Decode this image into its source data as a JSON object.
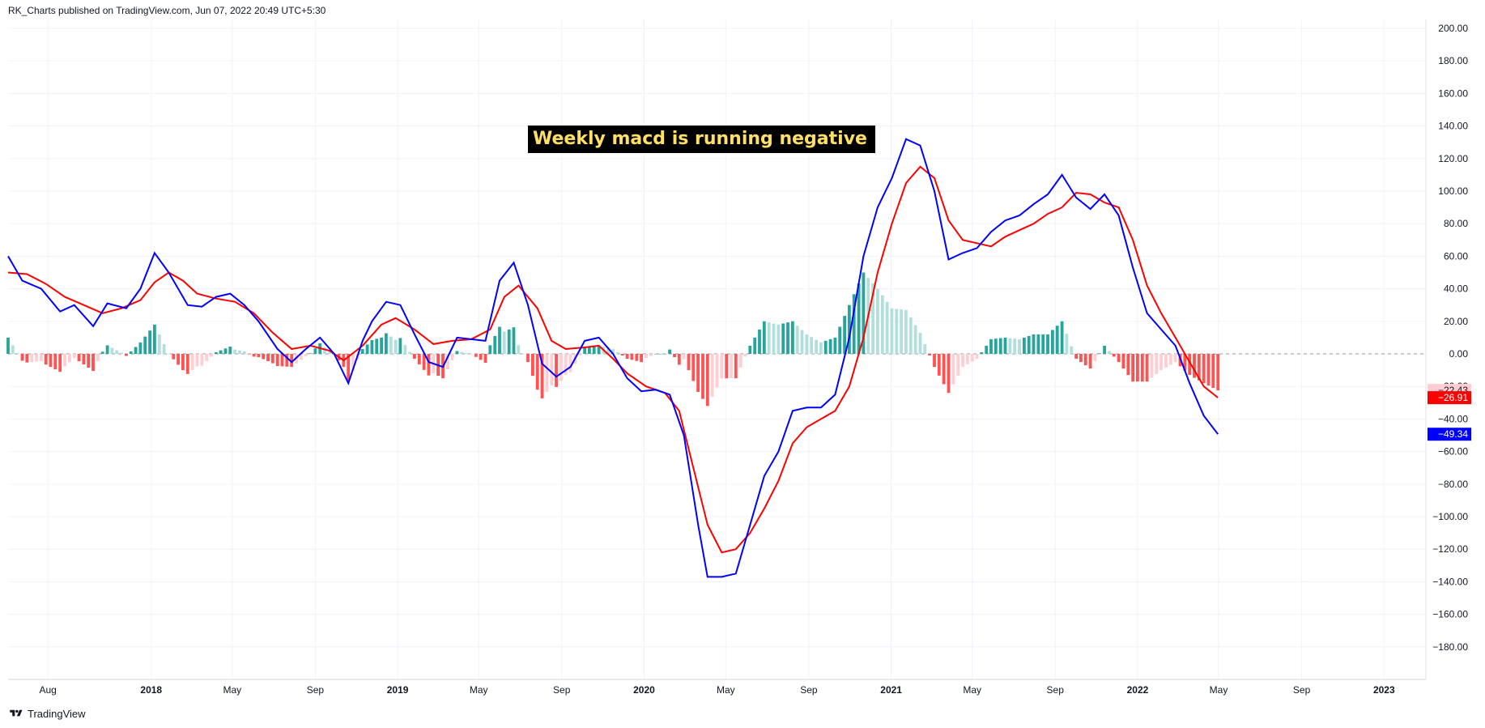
{
  "header": {
    "text": "RK_Charts published on TradingView.com, Jun 07, 2022 20:49 UTC+5:30"
  },
  "footer": {
    "brand": "TradingView",
    "logo_icon": "tradingview-logo-icon"
  },
  "annotation": {
    "text": "Weekly macd is running negative"
  },
  "chart_data": {
    "type": "line",
    "y_ticks": [
      "200.00",
      "180.00",
      "160.00",
      "140.00",
      "120.00",
      "100.00",
      "80.00",
      "60.00",
      "40.00",
      "20.00",
      "0.00",
      "−20.00",
      "−40.00",
      "−60.00",
      "−80.00",
      "−100.00",
      "−120.00",
      "−140.00",
      "−160.00",
      "−180.00"
    ],
    "y_tick_values": [
      200,
      180,
      160,
      140,
      120,
      100,
      80,
      60,
      40,
      20,
      0,
      -20,
      -40,
      -60,
      -80,
      -100,
      -120,
      -140,
      -160,
      -180
    ],
    "ylim": [
      -200,
      210
    ],
    "x_ticks": [
      {
        "label": "Aug",
        "date": "2017-08-01",
        "bold": false
      },
      {
        "label": "2018",
        "date": "2018-01-01",
        "bold": true
      },
      {
        "label": "May",
        "date": "2018-05-01",
        "bold": false
      },
      {
        "label": "Sep",
        "date": "2018-09-01",
        "bold": false
      },
      {
        "label": "2019",
        "date": "2019-01-01",
        "bold": true
      },
      {
        "label": "May",
        "date": "2019-05-01",
        "bold": false
      },
      {
        "label": "Sep",
        "date": "2019-09-01",
        "bold": false
      },
      {
        "label": "2020",
        "date": "2020-01-01",
        "bold": true
      },
      {
        "label": "May",
        "date": "2020-05-01",
        "bold": false
      },
      {
        "label": "Sep",
        "date": "2020-09-01",
        "bold": false
      },
      {
        "label": "2021",
        "date": "2021-01-01",
        "bold": true
      },
      {
        "label": "May",
        "date": "2021-05-01",
        "bold": false
      },
      {
        "label": "Sep",
        "date": "2021-09-01",
        "bold": false
      },
      {
        "label": "2022",
        "date": "2022-01-01",
        "bold": true
      },
      {
        "label": "May",
        "date": "2022-05-01",
        "bold": false
      },
      {
        "label": "Sep",
        "date": "2022-09-01",
        "bold": false
      },
      {
        "label": "2023",
        "date": "2023-01-01",
        "bold": true
      }
    ],
    "xlim": [
      "2017-06-03",
      "2023-03-04"
    ],
    "grid": true,
    "zero_line": "dashed",
    "colors": {
      "macd": "#0000ff",
      "signal": "#ff0000",
      "hist_pos_strong": "#26a69a",
      "hist_pos_weak": "#b2dfdb",
      "hist_neg_strong": "#ff5252",
      "hist_neg_weak": "#ffcdd2",
      "grid": "#f0f3fa",
      "axis_text": "#131722"
    },
    "value_tags": [
      {
        "value": -22.43,
        "label": "−22.43",
        "bg": "#ffcdd2",
        "fg": "#131722"
      },
      {
        "value": -26.91,
        "label": "−26.91",
        "bg": "#ff0000",
        "fg": "#ffffff"
      },
      {
        "value": -49.34,
        "label": "−49.34",
        "bg": "#0000ff",
        "fg": "#ffffff"
      }
    ],
    "series": [
      {
        "key": "macd",
        "points": [
          [
            "2017-06-03",
            60
          ],
          [
            "2017-06-24",
            45
          ],
          [
            "2017-07-22",
            40
          ],
          [
            "2017-08-19",
            26
          ],
          [
            "2017-09-09",
            30
          ],
          [
            "2017-10-07",
            17
          ],
          [
            "2017-10-28",
            31
          ],
          [
            "2017-11-25",
            28
          ],
          [
            "2017-12-16",
            40
          ],
          [
            "2018-01-06",
            62
          ],
          [
            "2018-01-27",
            50
          ],
          [
            "2018-02-24",
            30
          ],
          [
            "2018-03-17",
            29
          ],
          [
            "2018-04-07",
            35
          ],
          [
            "2018-04-28",
            37
          ],
          [
            "2018-05-19",
            30
          ],
          [
            "2018-06-09",
            20
          ],
          [
            "2018-07-07",
            3
          ],
          [
            "2018-07-28",
            -5
          ],
          [
            "2018-08-18",
            3
          ],
          [
            "2018-09-08",
            10
          ],
          [
            "2018-09-29",
            0
          ],
          [
            "2018-10-20",
            -18
          ],
          [
            "2018-11-10",
            8
          ],
          [
            "2018-11-24",
            20
          ],
          [
            "2018-12-15",
            32
          ],
          [
            "2019-01-05",
            30
          ],
          [
            "2019-01-26",
            12
          ],
          [
            "2019-02-16",
            -5
          ],
          [
            "2019-03-09",
            -8
          ],
          [
            "2019-03-30",
            10
          ],
          [
            "2019-04-20",
            9
          ],
          [
            "2019-05-11",
            8
          ],
          [
            "2019-06-01",
            45
          ],
          [
            "2019-06-22",
            56
          ],
          [
            "2019-07-13",
            30
          ],
          [
            "2019-08-03",
            -6
          ],
          [
            "2019-08-24",
            -14
          ],
          [
            "2019-09-14",
            -8
          ],
          [
            "2019-10-05",
            8
          ],
          [
            "2019-10-26",
            10
          ],
          [
            "2019-11-16",
            0
          ],
          [
            "2019-12-07",
            -15
          ],
          [
            "2019-12-28",
            -23
          ],
          [
            "2020-01-18",
            -22
          ],
          [
            "2020-02-08",
            -25
          ],
          [
            "2020-02-29",
            -50
          ],
          [
            "2020-03-21",
            -105
          ],
          [
            "2020-04-04",
            -137
          ],
          [
            "2020-04-25",
            -137
          ],
          [
            "2020-05-16",
            -135
          ],
          [
            "2020-06-06",
            -105
          ],
          [
            "2020-06-27",
            -75
          ],
          [
            "2020-07-18",
            -60
          ],
          [
            "2020-08-08",
            -35
          ],
          [
            "2020-08-29",
            -33
          ],
          [
            "2020-09-19",
            -33
          ],
          [
            "2020-10-10",
            -25
          ],
          [
            "2020-10-31",
            10
          ],
          [
            "2020-11-21",
            60
          ],
          [
            "2020-12-12",
            90
          ],
          [
            "2021-01-02",
            108
          ],
          [
            "2021-01-23",
            132
          ],
          [
            "2021-02-13",
            128
          ],
          [
            "2021-03-06",
            100
          ],
          [
            "2021-03-27",
            58
          ],
          [
            "2021-04-17",
            62
          ],
          [
            "2021-05-08",
            65
          ],
          [
            "2021-05-29",
            75
          ],
          [
            "2021-06-19",
            82
          ],
          [
            "2021-07-10",
            85
          ],
          [
            "2021-07-31",
            92
          ],
          [
            "2021-08-21",
            98
          ],
          [
            "2021-09-11",
            110
          ],
          [
            "2021-10-02",
            96
          ],
          [
            "2021-10-23",
            89
          ],
          [
            "2021-11-13",
            98
          ],
          [
            "2021-12-04",
            85
          ],
          [
            "2021-12-25",
            53
          ],
          [
            "2022-01-15",
            25
          ],
          [
            "2022-02-05",
            15
          ],
          [
            "2022-02-26",
            5
          ],
          [
            "2022-03-19",
            -18
          ],
          [
            "2022-04-09",
            -38
          ],
          [
            "2022-04-30",
            -49.34
          ]
        ]
      },
      {
        "key": "signal",
        "points": [
          [
            "2017-06-03",
            50
          ],
          [
            "2017-07-01",
            49
          ],
          [
            "2017-07-29",
            43
          ],
          [
            "2017-08-26",
            35
          ],
          [
            "2017-09-23",
            30
          ],
          [
            "2017-10-21",
            25
          ],
          [
            "2017-11-18",
            28
          ],
          [
            "2017-12-16",
            33
          ],
          [
            "2018-01-06",
            44
          ],
          [
            "2018-01-27",
            50
          ],
          [
            "2018-02-17",
            45
          ],
          [
            "2018-03-10",
            37
          ],
          [
            "2018-04-07",
            34
          ],
          [
            "2018-05-05",
            32
          ],
          [
            "2018-06-02",
            25
          ],
          [
            "2018-06-30",
            13
          ],
          [
            "2018-07-28",
            3
          ],
          [
            "2018-08-25",
            5
          ],
          [
            "2018-09-22",
            2
          ],
          [
            "2018-10-13",
            -4
          ],
          [
            "2018-11-10",
            5
          ],
          [
            "2018-12-08",
            18
          ],
          [
            "2018-12-29",
            22
          ],
          [
            "2019-01-26",
            15
          ],
          [
            "2019-02-23",
            6
          ],
          [
            "2019-03-23",
            8
          ],
          [
            "2019-04-20",
            9
          ],
          [
            "2019-05-18",
            15
          ],
          [
            "2019-06-08",
            35
          ],
          [
            "2019-06-29",
            42
          ],
          [
            "2019-07-27",
            28
          ],
          [
            "2019-08-17",
            8
          ],
          [
            "2019-09-07",
            3
          ],
          [
            "2019-10-05",
            4
          ],
          [
            "2019-10-26",
            5
          ],
          [
            "2019-11-16",
            -3
          ],
          [
            "2019-12-07",
            -12
          ],
          [
            "2020-01-04",
            -20
          ],
          [
            "2020-02-01",
            -24
          ],
          [
            "2020-02-22",
            -35
          ],
          [
            "2020-03-14",
            -70
          ],
          [
            "2020-04-04",
            -105
          ],
          [
            "2020-04-25",
            -122
          ],
          [
            "2020-05-16",
            -120
          ],
          [
            "2020-06-06",
            -110
          ],
          [
            "2020-06-27",
            -95
          ],
          [
            "2020-07-18",
            -78
          ],
          [
            "2020-08-08",
            -55
          ],
          [
            "2020-08-29",
            -45
          ],
          [
            "2020-09-19",
            -40
          ],
          [
            "2020-10-10",
            -35
          ],
          [
            "2020-10-31",
            -20
          ],
          [
            "2020-11-21",
            10
          ],
          [
            "2020-12-12",
            50
          ],
          [
            "2021-01-02",
            80
          ],
          [
            "2021-01-23",
            105
          ],
          [
            "2021-02-13",
            115
          ],
          [
            "2021-03-06",
            108
          ],
          [
            "2021-03-27",
            82
          ],
          [
            "2021-04-17",
            70
          ],
          [
            "2021-05-08",
            68
          ],
          [
            "2021-05-29",
            66
          ],
          [
            "2021-06-19",
            72
          ],
          [
            "2021-07-10",
            76
          ],
          [
            "2021-07-31",
            80
          ],
          [
            "2021-08-21",
            86
          ],
          [
            "2021-09-11",
            90
          ],
          [
            "2021-10-02",
            99
          ],
          [
            "2021-10-23",
            98
          ],
          [
            "2021-11-13",
            93
          ],
          [
            "2021-12-04",
            90
          ],
          [
            "2021-12-25",
            70
          ],
          [
            "2022-01-15",
            42
          ],
          [
            "2022-02-05",
            25
          ],
          [
            "2022-02-26",
            10
          ],
          [
            "2022-03-19",
            -5
          ],
          [
            "2022-04-09",
            -20
          ],
          [
            "2022-04-30",
            -26.91
          ]
        ]
      }
    ]
  }
}
